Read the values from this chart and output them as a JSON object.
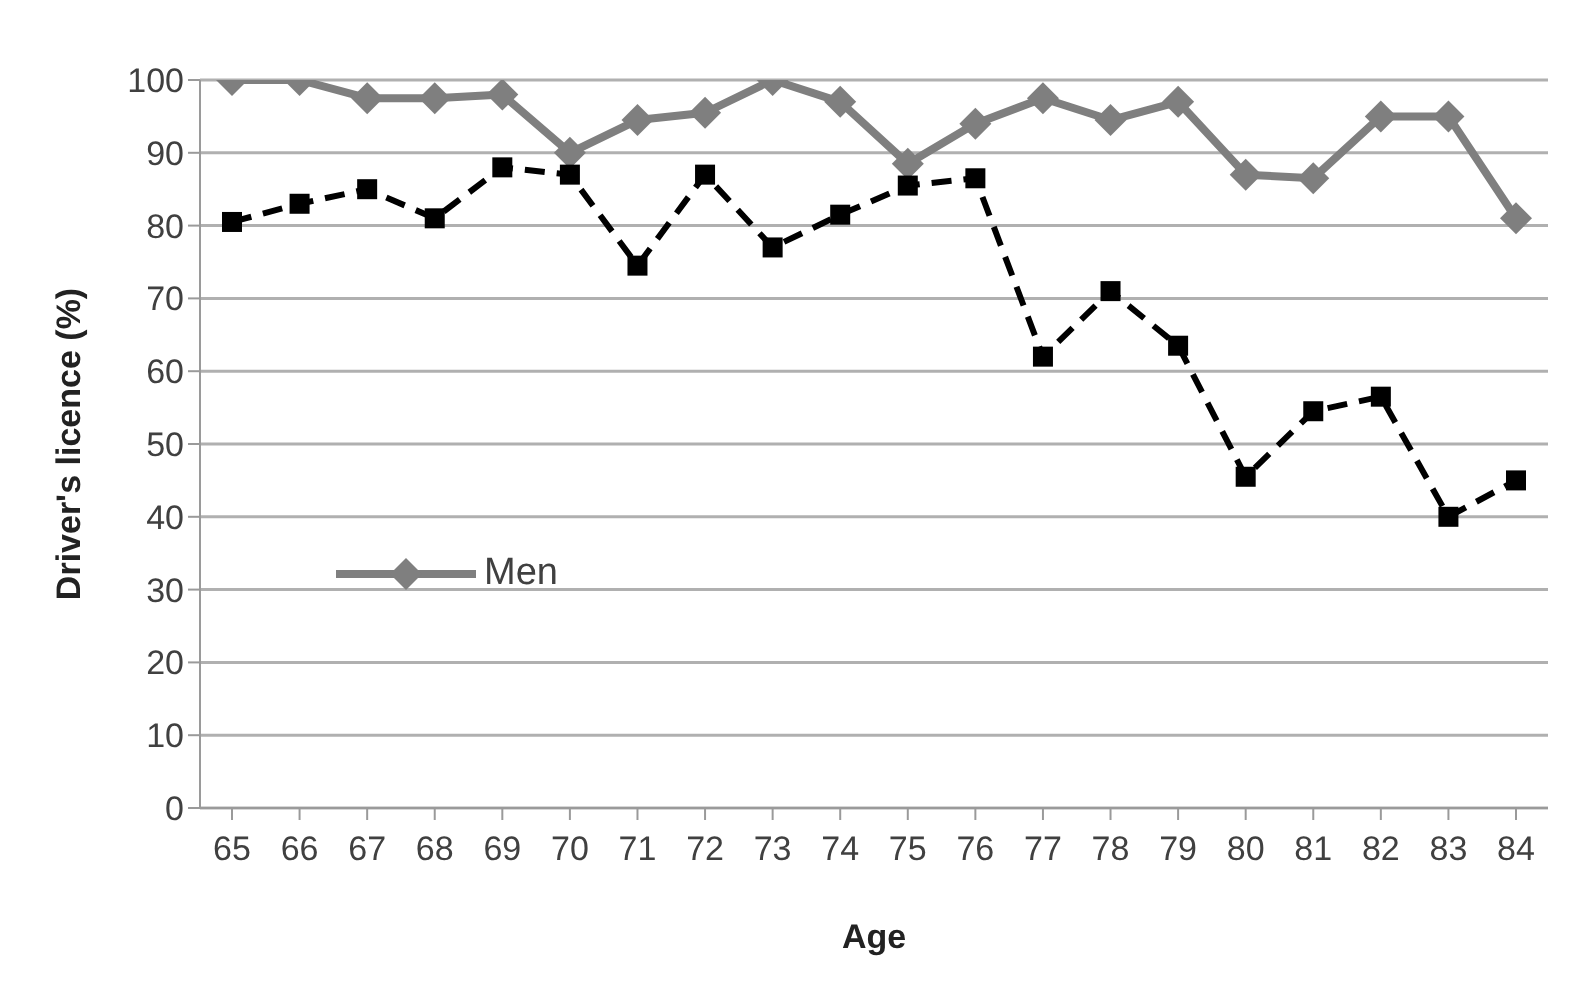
{
  "chart_data": {
    "type": "line",
    "xlabel": "Age",
    "ylabel": "Driver's licence (%)",
    "categories": [
      "65",
      "66",
      "67",
      "68",
      "69",
      "70",
      "71",
      "72",
      "73",
      "74",
      "75",
      "76",
      "77",
      "78",
      "79",
      "80",
      "81",
      "82",
      "83",
      "84"
    ],
    "series": [
      {
        "name": "Men",
        "color": "#7f7f7f",
        "marker": "diamond",
        "line_style": "solid",
        "values": [
          100,
          100,
          97.5,
          97.5,
          98,
          90,
          94.5,
          95.5,
          100,
          97,
          88.5,
          94,
          97.5,
          94.5,
          97,
          87,
          86.5,
          95,
          95,
          81
        ]
      },
      {
        "color": "#000000",
        "marker": "square",
        "line_style": "dashed",
        "values": [
          80.5,
          83,
          85,
          81,
          88,
          87,
          74.5,
          87,
          77,
          81.5,
          85.5,
          86.5,
          62,
          71,
          63.5,
          45.5,
          54.5,
          56.5,
          40,
          45
        ]
      }
    ],
    "ylim": [
      0,
      100
    ],
    "yticks": [
      0,
      10,
      20,
      30,
      40,
      50,
      60,
      70,
      80,
      90,
      100
    ],
    "grid": "y",
    "legend": "left"
  }
}
